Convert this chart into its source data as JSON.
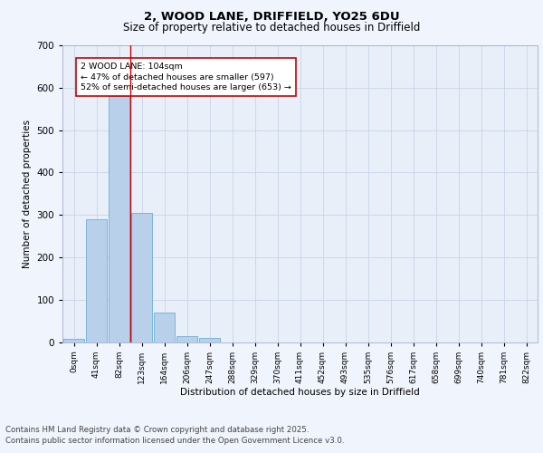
{
  "title1": "2, WOOD LANE, DRIFFIELD, YO25 6DU",
  "title2": "Size of property relative to detached houses in Driffield",
  "xlabel": "Distribution of detached houses by size in Driffield",
  "ylabel": "Number of detached properties",
  "bar_labels": [
    "0sqm",
    "41sqm",
    "82sqm",
    "123sqm",
    "164sqm",
    "206sqm",
    "247sqm",
    "288sqm",
    "329sqm",
    "370sqm",
    "411sqm",
    "452sqm",
    "493sqm",
    "535sqm",
    "576sqm",
    "617sqm",
    "658sqm",
    "699sqm",
    "740sqm",
    "781sqm",
    "822sqm"
  ],
  "bar_values": [
    8,
    290,
    580,
    305,
    70,
    14,
    10,
    0,
    0,
    0,
    0,
    0,
    0,
    0,
    0,
    0,
    0,
    0,
    0,
    0,
    0
  ],
  "bar_color": "#b8d0ea",
  "bar_edge_color": "#6baed6",
  "ylim": [
    0,
    700
  ],
  "yticks": [
    0,
    100,
    200,
    300,
    400,
    500,
    600,
    700
  ],
  "red_line_x": 2.5,
  "annotation_text": "2 WOOD LANE: 104sqm\n← 47% of detached houses are smaller (597)\n52% of semi-detached houses are larger (653) →",
  "annotation_box_color": "#ffffff",
  "annotation_box_edge": "#cc0000",
  "footer1": "Contains HM Land Registry data © Crown copyright and database right 2025.",
  "footer2": "Contains public sector information licensed under the Open Government Licence v3.0.",
  "fig_bg_color": "#f0f4fc",
  "plot_bg_color": "#e8eff9",
  "grid_color": "#c8d4e8"
}
